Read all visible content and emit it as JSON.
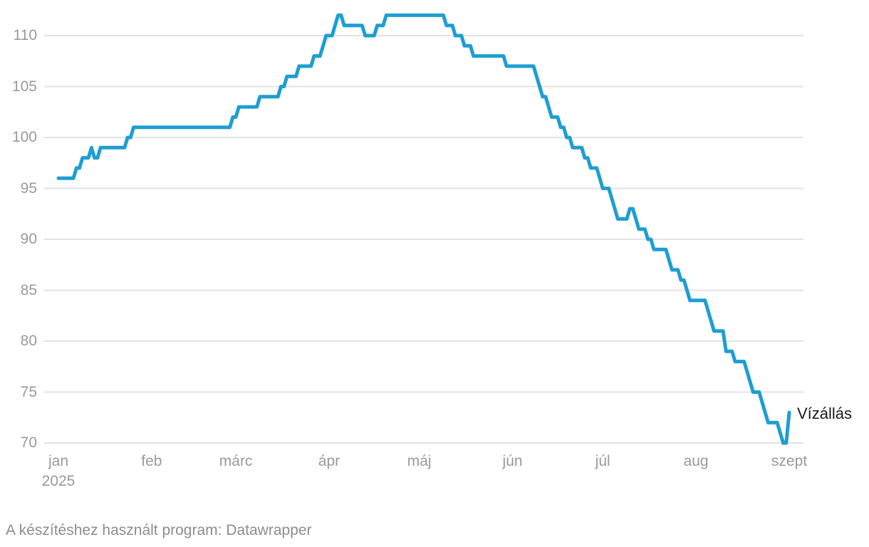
{
  "chart_data": {
    "type": "line",
    "title": "",
    "series_label": "Vízállás",
    "x_start_date": "2025-01-01",
    "x_interval": "daily",
    "x_ticks": [
      {
        "label": "jan",
        "day": 0,
        "year_label": "2025"
      },
      {
        "label": "feb",
        "day": 31
      },
      {
        "label": "márc",
        "day": 59
      },
      {
        "label": "ápr",
        "day": 90
      },
      {
        "label": "máj",
        "day": 120
      },
      {
        "label": "jún",
        "day": 151
      },
      {
        "label": "júl",
        "day": 181
      },
      {
        "label": "aug",
        "day": 212
      },
      {
        "label": "szept",
        "day": 243
      }
    ],
    "y_ticks": [
      110,
      105,
      100,
      95,
      90,
      85,
      80,
      75,
      70
    ],
    "ylim": [
      70,
      112
    ],
    "grid": true,
    "legend_position": "end-of-line-right",
    "values": [
      96,
      96,
      96,
      96,
      96,
      96,
      97,
      97,
      98,
      98,
      98,
      99,
      98,
      98,
      99,
      99,
      99,
      99,
      99,
      99,
      99,
      99,
      99,
      100,
      100,
      101,
      101,
      101,
      101,
      101,
      101,
      101,
      101,
      101,
      101,
      101,
      101,
      101,
      101,
      101,
      101,
      101,
      101,
      101,
      101,
      101,
      101,
      101,
      101,
      101,
      101,
      101,
      101,
      101,
      101,
      101,
      101,
      101,
      102,
      102,
      103,
      103,
      103,
      103,
      103,
      103,
      103,
      104,
      104,
      104,
      104,
      104,
      104,
      104,
      105,
      105,
      106,
      106,
      106,
      106,
      107,
      107,
      107,
      107,
      107,
      108,
      108,
      108,
      109,
      110,
      110,
      110,
      111,
      112,
      112,
      111,
      111,
      111,
      111,
      111,
      111,
      111,
      110,
      110,
      110,
      110,
      111,
      111,
      111,
      112,
      112,
      112,
      112,
      112,
      112,
      112,
      112,
      112,
      112,
      112,
      112,
      112,
      112,
      112,
      112,
      112,
      112,
      112,
      112,
      111,
      111,
      111,
      110,
      110,
      110,
      109,
      109,
      109,
      108,
      108,
      108,
      108,
      108,
      108,
      108,
      108,
      108,
      108,
      108,
      107,
      107,
      107,
      107,
      107,
      107,
      107,
      107,
      107,
      107,
      106,
      105,
      104,
      104,
      103,
      102,
      102,
      102,
      101,
      101,
      100,
      100,
      99,
      99,
      99,
      99,
      98,
      98,
      97,
      97,
      97,
      96,
      95,
      95,
      95,
      94,
      93,
      92,
      92,
      92,
      92,
      93,
      93,
      92,
      91,
      91,
      91,
      90,
      90,
      89,
      89,
      89,
      89,
      89,
      88,
      87,
      87,
      87,
      86,
      86,
      85,
      84,
      84,
      84,
      84,
      84,
      84,
      83,
      82,
      81,
      81,
      81,
      81,
      79,
      79,
      79,
      78,
      78,
      78,
      78,
      77,
      76,
      75,
      75,
      75,
      74,
      73,
      72,
      72,
      72,
      72,
      71,
      70,
      70,
      73
    ]
  },
  "colors": {
    "line": "#1e9ed2",
    "grid": "#e3e3e3",
    "tick_text": "#9a9a9a",
    "footer_text": "#8d8d8d",
    "series_label_text": "#1a1a1a"
  },
  "footer": {
    "credit": "A készítéshez használt program: Datawrapper"
  }
}
